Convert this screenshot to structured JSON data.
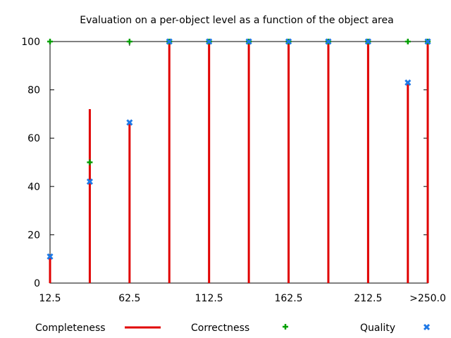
{
  "chart_data": {
    "type": "bar",
    "title": "Evaluation on a per-object level as a function of the object area",
    "xlabel": "",
    "ylabel": "",
    "x": [
      12.5,
      37.5,
      62.5,
      87.5,
      112.5,
      137.5,
      162.5,
      187.5,
      212.5,
      237.5,
      250
    ],
    "xlim": [
      12.5,
      250
    ],
    "x_tick_values": [
      12.5,
      62.5,
      112.5,
      162.5,
      212.5,
      250
    ],
    "x_tick_labels": [
      "12.5",
      "62.5",
      "112.5",
      "162.5",
      "212.5",
      ">250.0"
    ],
    "ylim": [
      0,
      100
    ],
    "y_ticks": [
      0,
      20,
      40,
      60,
      80,
      100
    ],
    "grid": false,
    "legend_position": "bottom",
    "series": [
      {
        "name": "Completeness",
        "style": "impulses",
        "color": "#e00000",
        "values": [
          11,
          72,
          67,
          100,
          100,
          100,
          100,
          100,
          100,
          83,
          100
        ]
      },
      {
        "name": "Correctness",
        "style": "points",
        "marker": "plus",
        "color": "#00a000",
        "values": [
          100,
          50,
          100,
          100,
          100,
          100,
          100,
          100,
          100,
          100,
          100
        ]
      },
      {
        "name": "Quality",
        "style": "points",
        "marker": "cross",
        "color": "#1e78e6",
        "values": [
          11,
          42,
          66.5,
          100,
          100,
          100,
          100,
          100,
          100,
          83,
          100
        ]
      }
    ]
  }
}
